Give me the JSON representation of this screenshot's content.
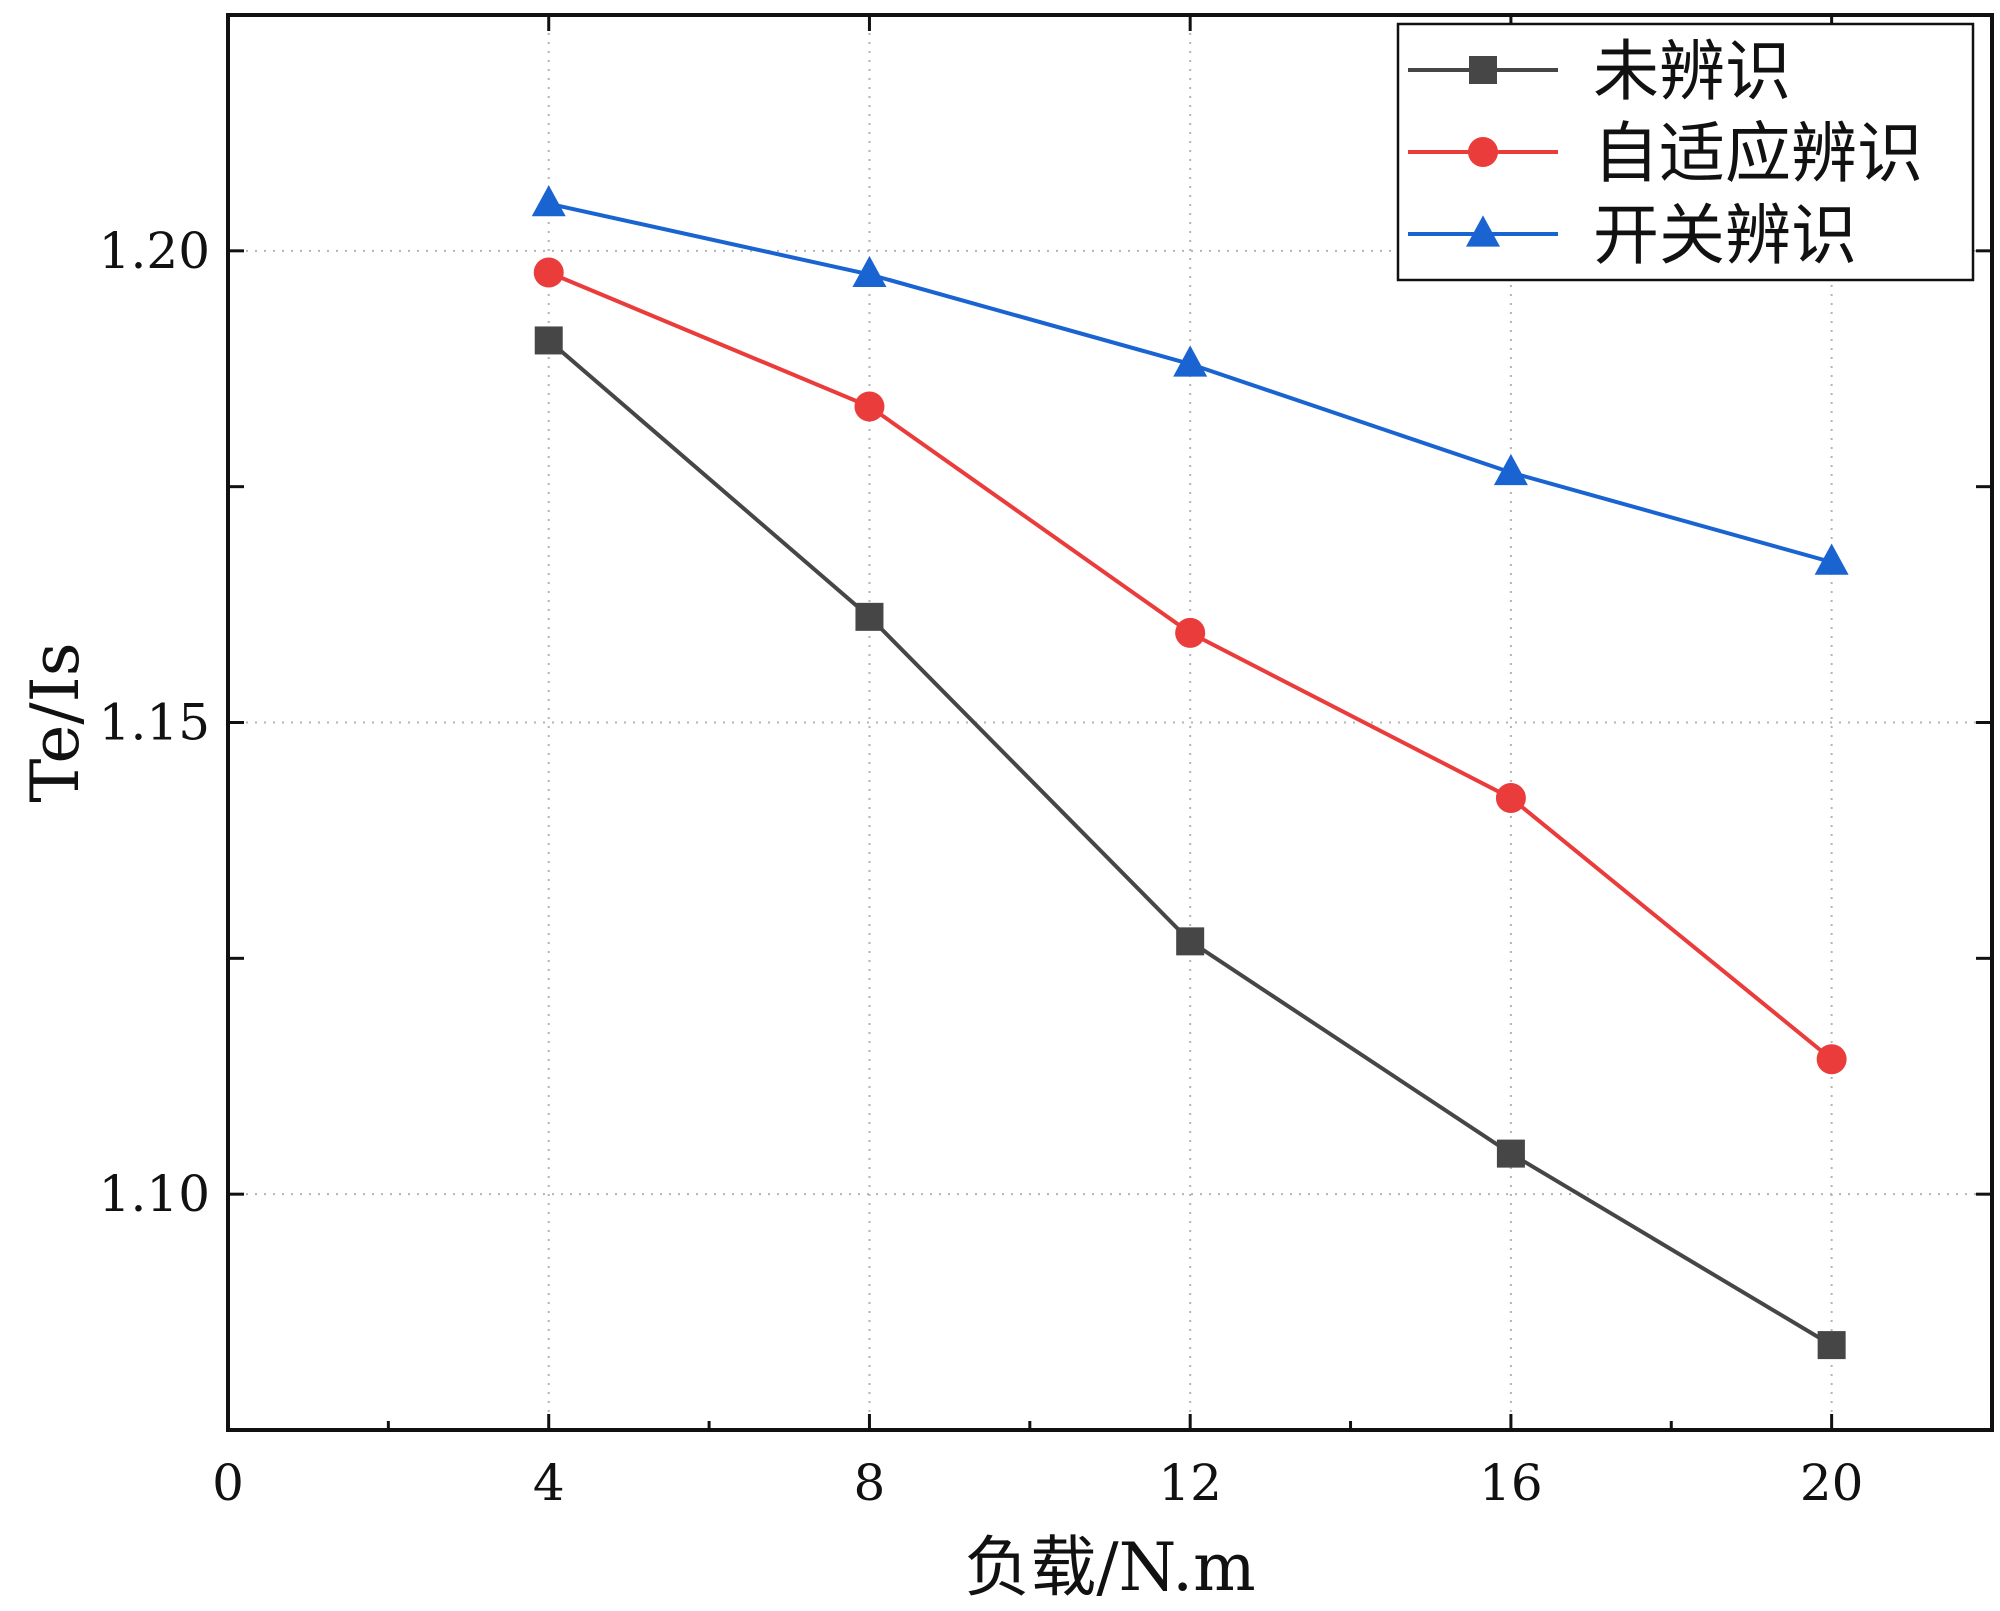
{
  "chart_data": {
    "type": "line",
    "title": "",
    "xlabel": "负载/N.m",
    "ylabel": "Te/Is",
    "xlim": [
      0,
      22
    ],
    "ylim": [
      1.075,
      1.225
    ],
    "x_ticks": [
      0,
      4,
      8,
      12,
      16,
      20
    ],
    "x_minor_ticks": [
      2,
      6,
      10,
      14,
      18,
      22
    ],
    "y_ticks": [
      1.1,
      1.15,
      1.2
    ],
    "y_tick_labels": [
      "1.10",
      "1.15",
      "1.20"
    ],
    "y_minor_ticks": [
      1.125,
      1.175
    ],
    "grid": true,
    "legend_position": "top-right",
    "x": [
      4,
      8,
      12,
      16,
      20
    ],
    "series": [
      {
        "name": "未辨识",
        "values": [
          1.1905,
          1.1612,
          1.1268,
          1.1043,
          1.084
        ],
        "color": "#464646",
        "marker": "square"
      },
      {
        "name": "自适应辨识",
        "values": [
          1.1977,
          1.1835,
          1.1595,
          1.142,
          1.1143
        ],
        "color": "#eb3c3c",
        "marker": "circle"
      },
      {
        "name": "开关辨识",
        "values": [
          1.205,
          1.1975,
          1.188,
          1.1765,
          1.167
        ],
        "color": "#1a64d2",
        "marker": "triangle"
      }
    ]
  }
}
